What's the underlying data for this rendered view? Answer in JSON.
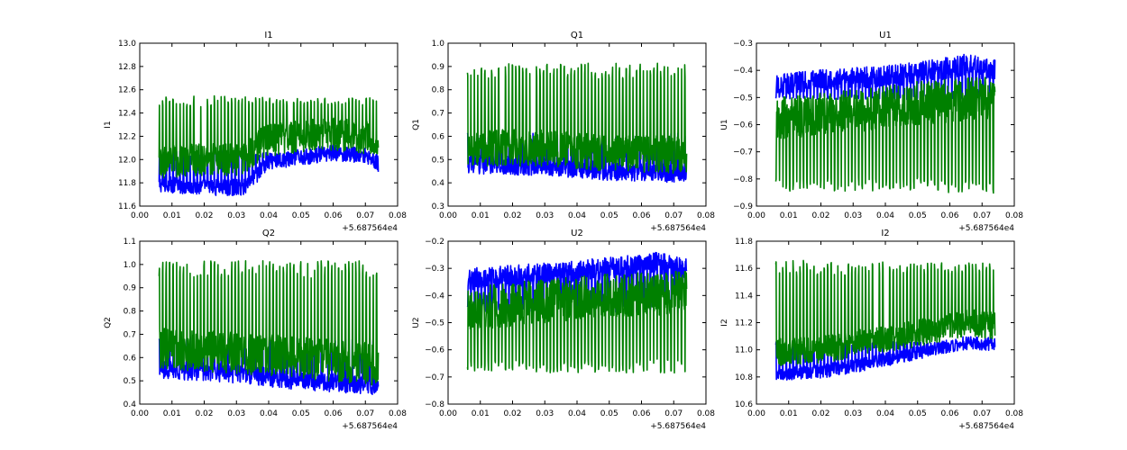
{
  "chart_data": [
    {
      "type": "line",
      "title": "I1",
      "ylabel": "I1",
      "xlabel": "",
      "xlim": [
        0.0,
        0.08
      ],
      "ylim": [
        11.6,
        13.0
      ],
      "xticks": [
        "0.00",
        "0.01",
        "0.02",
        "0.03",
        "0.04",
        "0.05",
        "0.06",
        "0.07",
        "0.08"
      ],
      "yticks": [
        "11.6",
        "11.8",
        "12.0",
        "12.2",
        "12.4",
        "12.6",
        "12.8",
        "13.0"
      ],
      "x_offset_label": "+5.687564e4",
      "grid": false,
      "series": [
        {
          "color": "#0000ff",
          "x_range": [
            0.006,
            0.074
          ],
          "trend": [
            [
              0.006,
              11.79
            ],
            [
              0.02,
              11.76
            ],
            [
              0.032,
              11.76
            ],
            [
              0.036,
              11.86
            ],
            [
              0.04,
              11.98
            ],
            [
              0.05,
              12.02
            ],
            [
              0.06,
              12.06
            ],
            [
              0.07,
              12.04
            ],
            [
              0.074,
              11.96
            ]
          ],
          "spread": 0.07,
          "spike_top": 12.05
        },
        {
          "color": "#008000",
          "x_range": [
            0.006,
            0.074
          ],
          "trend": [
            [
              0.006,
              11.98
            ],
            [
              0.02,
              12.0
            ],
            [
              0.032,
              12.0
            ],
            [
              0.038,
              12.15
            ],
            [
              0.05,
              12.2
            ],
            [
              0.06,
              12.22
            ],
            [
              0.074,
              12.18
            ]
          ],
          "spread": 0.14,
          "spike_top": 12.5
        }
      ]
    },
    {
      "type": "line",
      "title": "Q1",
      "ylabel": "Q1",
      "xlabel": "",
      "xlim": [
        0.0,
        0.08
      ],
      "ylim": [
        0.3,
        1.0
      ],
      "xticks": [
        "0.00",
        "0.01",
        "0.02",
        "0.03",
        "0.04",
        "0.05",
        "0.06",
        "0.07",
        "0.08"
      ],
      "yticks": [
        "0.3",
        "0.4",
        "0.5",
        "0.6",
        "0.7",
        "0.8",
        "0.9",
        "1.0"
      ],
      "x_offset_label": "+5.687564e4",
      "grid": false,
      "series": [
        {
          "color": "#0000ff",
          "x_range": [
            0.006,
            0.074
          ],
          "trend": [
            [
              0.006,
              0.48
            ],
            [
              0.03,
              0.47
            ],
            [
              0.05,
              0.45
            ],
            [
              0.074,
              0.44
            ]
          ],
          "spread": 0.04,
          "spike_top": 0.6
        },
        {
          "color": "#008000",
          "x_range": [
            0.006,
            0.074
          ],
          "trend": [
            [
              0.006,
              0.55
            ],
            [
              0.03,
              0.55
            ],
            [
              0.05,
              0.53
            ],
            [
              0.074,
              0.52
            ]
          ],
          "spread": 0.08,
          "spike_top": 0.88
        }
      ]
    },
    {
      "type": "line",
      "title": "U1",
      "ylabel": "U1",
      "xlabel": "",
      "xlim": [
        0.0,
        0.08
      ],
      "ylim": [
        -0.9,
        -0.3
      ],
      "xticks": [
        "0.00",
        "0.01",
        "0.02",
        "0.03",
        "0.04",
        "0.05",
        "0.06",
        "0.07",
        "0.08"
      ],
      "yticks": [
        "-0.9",
        "-0.8",
        "-0.7",
        "-0.6",
        "-0.5",
        "-0.4",
        "-0.3"
      ],
      "x_offset_label": "+5.687564e4",
      "grid": false,
      "series": [
        {
          "color": "#0000ff",
          "x_range": [
            0.006,
            0.074
          ],
          "trend": [
            [
              0.006,
              -0.45
            ],
            [
              0.03,
              -0.43
            ],
            [
              0.05,
              -0.41
            ],
            [
              0.065,
              -0.38
            ],
            [
              0.074,
              -0.4
            ]
          ],
          "spread": 0.04,
          "spike_top": -0.5
        },
        {
          "color": "#008000",
          "x_range": [
            0.006,
            0.074
          ],
          "trend": [
            [
              0.006,
              -0.58
            ],
            [
              0.03,
              -0.55
            ],
            [
              0.05,
              -0.52
            ],
            [
              0.074,
              -0.5
            ]
          ],
          "spread": 0.08,
          "spike_top": -0.82
        }
      ]
    },
    {
      "type": "line",
      "title": "Q2",
      "ylabel": "Q2",
      "xlabel": "",
      "xlim": [
        0.0,
        0.08
      ],
      "ylim": [
        0.4,
        1.1
      ],
      "xticks": [
        "0.00",
        "0.01",
        "0.02",
        "0.03",
        "0.04",
        "0.05",
        "0.06",
        "0.07",
        "0.08"
      ],
      "yticks": [
        "0.4",
        "0.5",
        "0.6",
        "0.7",
        "0.8",
        "0.9",
        "1.0",
        "1.1"
      ],
      "x_offset_label": "+5.687564e4",
      "grid": false,
      "series": [
        {
          "color": "#0000ff",
          "x_range": [
            0.006,
            0.074
          ],
          "trend": [
            [
              0.006,
              0.55
            ],
            [
              0.03,
              0.53
            ],
            [
              0.05,
              0.5
            ],
            [
              0.074,
              0.48
            ]
          ],
          "spread": 0.04,
          "spike_top": 0.68
        },
        {
          "color": "#008000",
          "x_range": [
            0.006,
            0.074
          ],
          "trend": [
            [
              0.006,
              0.64
            ],
            [
              0.03,
              0.62
            ],
            [
              0.05,
              0.6
            ],
            [
              0.074,
              0.57
            ]
          ],
          "spread": 0.09,
          "spike_top": 0.98
        }
      ]
    },
    {
      "type": "line",
      "title": "U2",
      "ylabel": "U2",
      "xlabel": "",
      "xlim": [
        0.0,
        0.08
      ],
      "ylim": [
        -0.8,
        -0.2
      ],
      "xticks": [
        "0.00",
        "0.01",
        "0.02",
        "0.03",
        "0.04",
        "0.05",
        "0.06",
        "0.07",
        "0.08"
      ],
      "yticks": [
        "-0.8",
        "-0.7",
        "-0.6",
        "-0.5",
        "-0.4",
        "-0.3",
        "-0.2"
      ],
      "x_offset_label": "+5.687564e4",
      "grid": false,
      "series": [
        {
          "color": "#0000ff",
          "x_range": [
            0.006,
            0.074
          ],
          "trend": [
            [
              0.006,
              -0.34
            ],
            [
              0.03,
              -0.32
            ],
            [
              0.05,
              -0.3
            ],
            [
              0.065,
              -0.28
            ],
            [
              0.074,
              -0.3
            ]
          ],
          "spread": 0.04,
          "spike_top": -0.45
        },
        {
          "color": "#008000",
          "x_range": [
            0.006,
            0.074
          ],
          "trend": [
            [
              0.006,
              -0.45
            ],
            [
              0.03,
              -0.42
            ],
            [
              0.05,
              -0.4
            ],
            [
              0.074,
              -0.39
            ]
          ],
          "spread": 0.08,
          "spike_top": -0.66
        }
      ]
    },
    {
      "type": "line",
      "title": "I2",
      "ylabel": "I2",
      "xlabel": "",
      "xlim": [
        0.0,
        0.08
      ],
      "ylim": [
        10.6,
        11.8
      ],
      "xticks": [
        "0.00",
        "0.01",
        "0.02",
        "0.03",
        "0.04",
        "0.05",
        "0.06",
        "0.07",
        "0.08"
      ],
      "yticks": [
        "10.6",
        "10.8",
        "11.0",
        "11.2",
        "11.4",
        "11.6",
        "11.8"
      ],
      "x_offset_label": "+5.687564e4",
      "grid": false,
      "series": [
        {
          "color": "#0000ff",
          "x_range": [
            0.006,
            0.074
          ],
          "trend": [
            [
              0.006,
              10.82
            ],
            [
              0.02,
              10.84
            ],
            [
              0.035,
              10.9
            ],
            [
              0.05,
              10.98
            ],
            [
              0.065,
              11.05
            ],
            [
              0.074,
              11.04
            ]
          ],
          "spread": 0.05,
          "spike_top": 11.05
        },
        {
          "color": "#008000",
          "x_range": [
            0.006,
            0.074
          ],
          "trend": [
            [
              0.006,
              10.98
            ],
            [
              0.02,
              11.0
            ],
            [
              0.035,
              11.06
            ],
            [
              0.05,
              11.12
            ],
            [
              0.065,
              11.2
            ],
            [
              0.074,
              11.18
            ]
          ],
          "spread": 0.1,
          "spike_top": 11.6
        }
      ]
    }
  ]
}
